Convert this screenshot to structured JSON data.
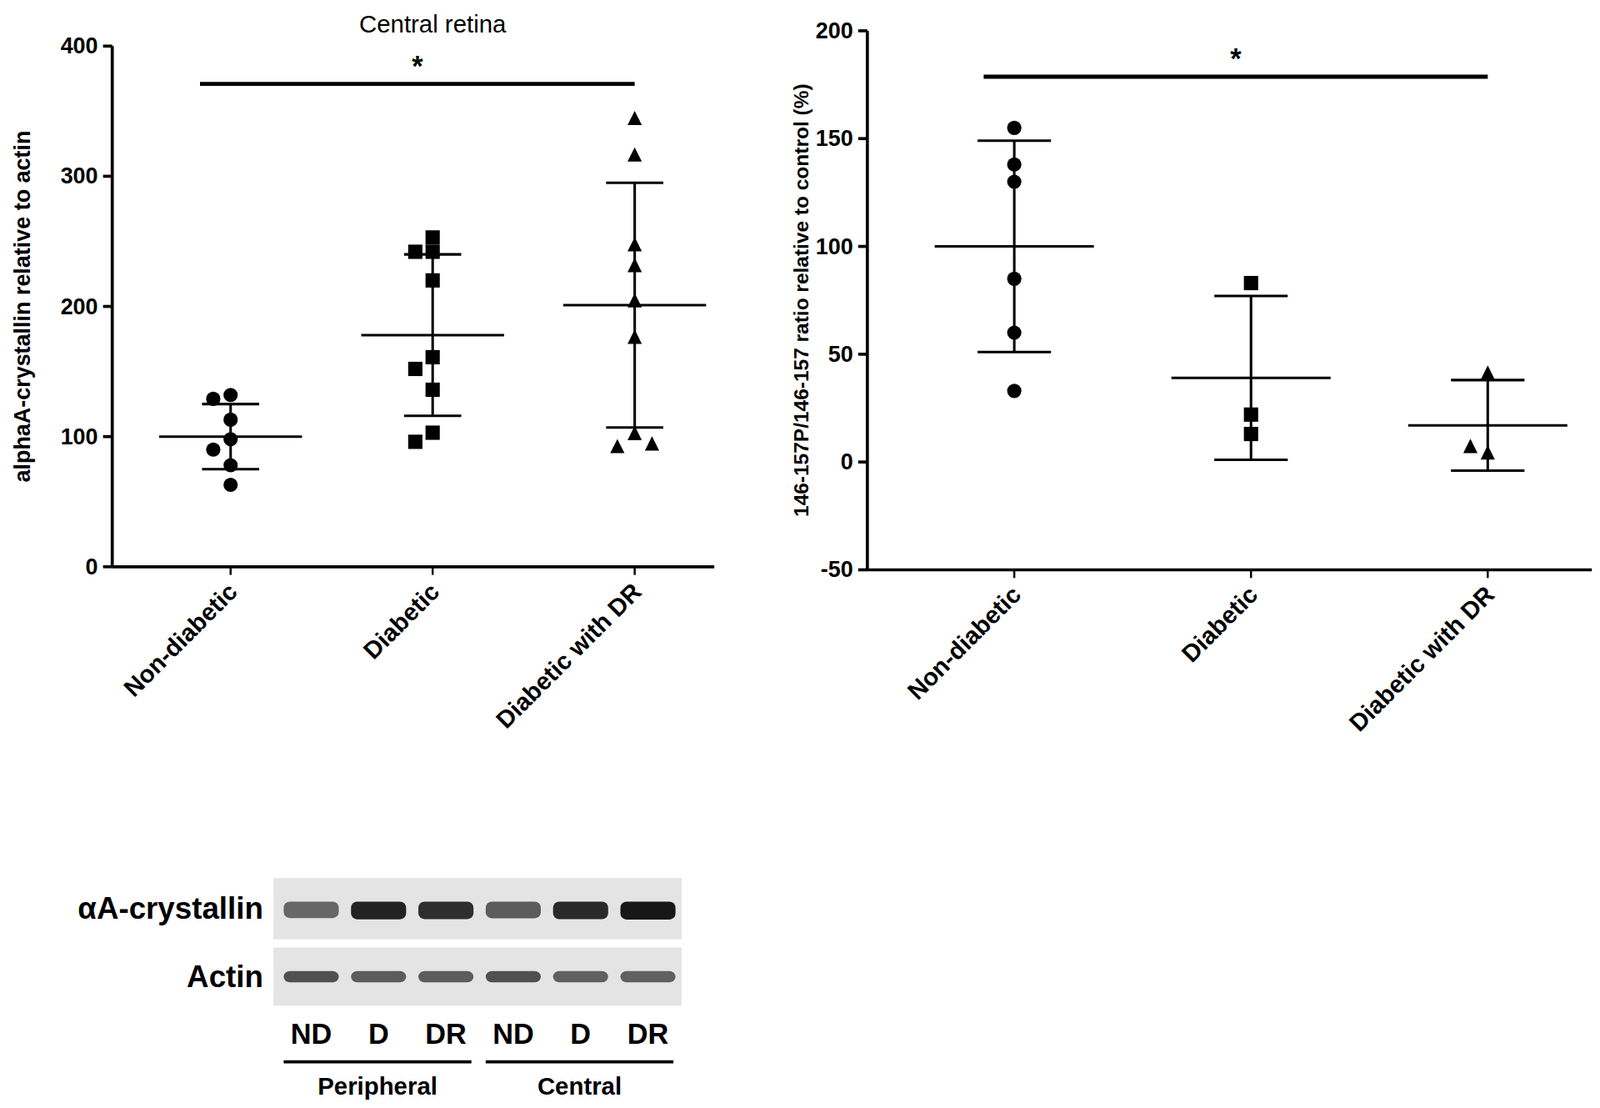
{
  "chart_data": [
    {
      "type": "scatter",
      "title": "Central retina",
      "y_label": "alphaA-crystallin relative to actin",
      "categories": [
        "Non-diabetic",
        "Diabetic",
        "Diabetic with DR"
      ],
      "ylim": [
        0,
        400
      ],
      "yticks": [
        0,
        100,
        200,
        300,
        400
      ],
      "groups": [
        {
          "marker": "circle",
          "values": [
            132,
            129,
            113,
            98,
            90,
            78,
            63
          ],
          "mean": 100,
          "sd": 25
        },
        {
          "marker": "square",
          "values": [
            253,
            242,
            242,
            220,
            161,
            152,
            136,
            103,
            96
          ],
          "mean": 178,
          "sd": 62
        },
        {
          "marker": "triangle",
          "values": [
            344,
            316,
            247,
            231,
            204,
            176,
            102,
            92,
            94
          ],
          "mean": 201,
          "sd": 94
        }
      ],
      "significance": [
        {
          "label": "*",
          "from": "Non-diabetic",
          "to": "Diabetic with DR"
        }
      ]
    },
    {
      "type": "scatter",
      "y_label": "146-157P/146-157 ratio relative to control (%)",
      "categories": [
        "Non-diabetic",
        "Diabetic",
        "Diabetic with DR"
      ],
      "ylim": [
        -50,
        200
      ],
      "yticks": [
        -50,
        0,
        50,
        100,
        150,
        200
      ],
      "groups": [
        {
          "marker": "circle",
          "values": [
            155,
            138,
            130,
            85,
            60,
            33
          ],
          "mean": 100,
          "sd": 49
        },
        {
          "marker": "square",
          "values": [
            83,
            22,
            13
          ],
          "mean": 39,
          "sd": 38
        },
        {
          "marker": "triangle",
          "values": [
            41,
            4,
            7
          ],
          "mean": 17,
          "sd": 21
        }
      ],
      "significance": [
        {
          "label": "*",
          "from": "Non-diabetic",
          "to": "Diabetic with DR"
        }
      ]
    }
  ],
  "blot": {
    "rows": [
      "αA-crystallin",
      "Actin"
    ],
    "lanes": [
      "ND",
      "D",
      "DR",
      "ND",
      "D",
      "DR"
    ],
    "lane_groups": [
      {
        "label": "Peripheral",
        "count": 3
      },
      {
        "label": "Central",
        "count": 3
      }
    ]
  }
}
